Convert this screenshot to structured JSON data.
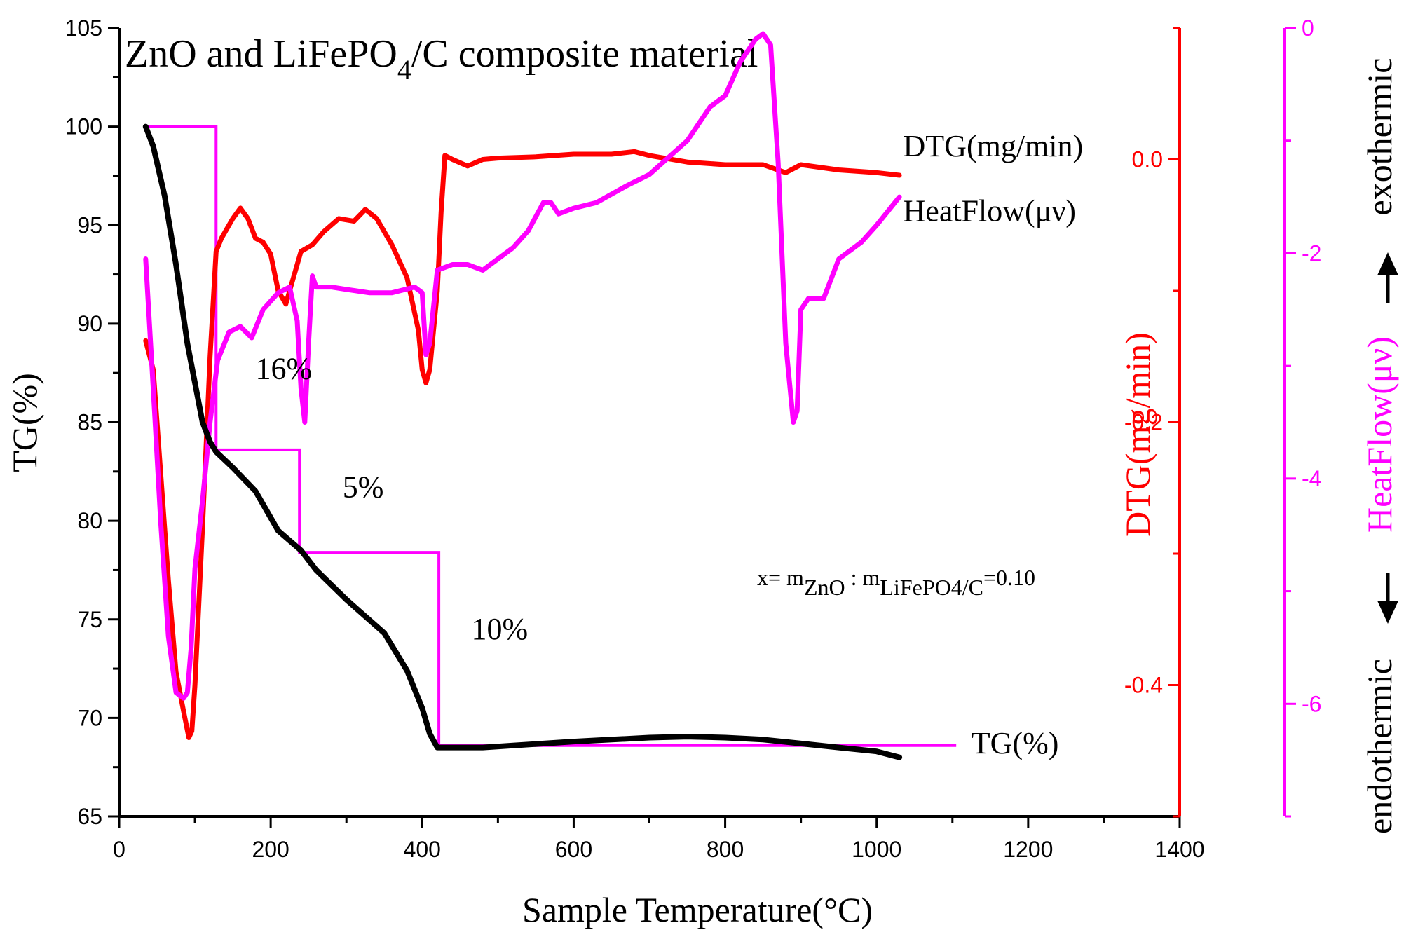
{
  "chart_data": {
    "type": "line",
    "title": "ZnO and LiFePO4/C composite material",
    "title_parts": {
      "pre": "ZnO and LiFePO",
      "sub": "4",
      "post": "/C composite material"
    },
    "xlabel": "Sample Temperature(°C)",
    "xlim": [
      0,
      1400
    ],
    "x_ticks": [
      0,
      200,
      400,
      600,
      800,
      1000,
      1200,
      1400
    ],
    "axes": {
      "tg": {
        "label": "TG(%)",
        "range": [
          65,
          105
        ],
        "ticks": [
          65,
          70,
          75,
          80,
          85,
          90,
          95,
          100,
          105
        ],
        "color": "#000000"
      },
      "dtg": {
        "label": "DTG(mg/min)",
        "range": [
          -0.5,
          0.1
        ],
        "ticks": [
          -0.4,
          -0.2,
          0.0
        ],
        "tick_labels": [
          "-0.4",
          "-0.2",
          "0.0"
        ],
        "color": "#ff0000"
      },
      "heat": {
        "label": "HeatFlow(μν)",
        "range": [
          -7,
          0
        ],
        "ticks": [
          -6,
          -4,
          -2,
          0
        ],
        "color": "#ff00ff"
      }
    },
    "side_labels": {
      "exo": "exothermic",
      "endo": "endothermic"
    },
    "series": [
      {
        "name": "TG(%)",
        "axis": "tg",
        "color": "#000000",
        "x": [
          35,
          45,
          60,
          75,
          90,
          100,
          110,
          120,
          128,
          150,
          180,
          210,
          225,
          240,
          260,
          300,
          350,
          380,
          400,
          410,
          420,
          440,
          480,
          520,
          600,
          650,
          700,
          750,
          800,
          850,
          900,
          950,
          1000,
          1030
        ],
        "y": [
          100,
          99,
          96.5,
          93,
          89,
          87,
          85,
          84,
          83.5,
          82.7,
          81.5,
          79.5,
          79,
          78.5,
          77.5,
          76,
          74.3,
          72.4,
          70.5,
          69.2,
          68.5,
          68.5,
          68.5,
          68.6,
          68.8,
          68.9,
          69.0,
          69.05,
          69.0,
          68.9,
          68.7,
          68.5,
          68.3,
          68.0
        ]
      },
      {
        "name": "DTG(mg/min)",
        "axis": "dtg",
        "color": "#ff0000",
        "x": [
          35,
          45,
          55,
          65,
          75,
          85,
          92,
          96,
          100,
          110,
          120,
          128,
          135,
          150,
          160,
          170,
          180,
          190,
          200,
          210,
          220,
          230,
          240,
          255,
          270,
          290,
          310,
          325,
          340,
          360,
          380,
          395,
          400,
          405,
          410,
          420,
          425,
          430,
          440,
          460,
          480,
          500,
          550,
          600,
          650,
          680,
          700,
          750,
          800,
          850,
          880,
          900,
          950,
          1000,
          1030
        ],
        "y": [
          -0.138,
          -0.16,
          -0.24,
          -0.32,
          -0.39,
          -0.42,
          -0.44,
          -0.435,
          -0.4,
          -0.28,
          -0.15,
          -0.07,
          -0.06,
          -0.045,
          -0.037,
          -0.045,
          -0.06,
          -0.063,
          -0.072,
          -0.1,
          -0.11,
          -0.09,
          -0.07,
          -0.065,
          -0.055,
          -0.045,
          -0.047,
          -0.038,
          -0.045,
          -0.065,
          -0.09,
          -0.13,
          -0.16,
          -0.17,
          -0.16,
          -0.1,
          -0.04,
          0.003,
          0.0,
          -0.005,
          0.0,
          0.001,
          0.002,
          0.004,
          0.004,
          0.006,
          0.003,
          -0.002,
          -0.004,
          -0.004,
          -0.01,
          -0.004,
          -0.008,
          -0.01,
          -0.012
        ]
      },
      {
        "name": "HeatFlow(μν)",
        "axis": "heat",
        "color": "#ff00ff",
        "x": [
          35,
          45,
          55,
          65,
          75,
          85,
          90,
          95,
          100,
          110,
          120,
          130,
          145,
          160,
          175,
          190,
          210,
          225,
          235,
          240,
          245,
          250,
          255,
          260,
          265,
          280,
          300,
          330,
          360,
          390,
          400,
          405,
          410,
          420,
          440,
          460,
          480,
          500,
          520,
          540,
          560,
          570,
          580,
          600,
          630,
          670,
          700,
          750,
          780,
          800,
          820,
          840,
          850,
          860,
          870,
          880,
          890,
          895,
          900,
          910,
          930,
          950,
          980,
          1000,
          1030
        ],
        "y": [
          -2.05,
          -3.2,
          -4.4,
          -5.4,
          -5.9,
          -5.95,
          -5.9,
          -5.5,
          -4.8,
          -4.2,
          -3.5,
          -2.95,
          -2.7,
          -2.65,
          -2.75,
          -2.5,
          -2.35,
          -2.3,
          -2.6,
          -3.2,
          -3.5,
          -2.8,
          -2.2,
          -2.3,
          -2.3,
          -2.3,
          -2.32,
          -2.35,
          -2.35,
          -2.3,
          -2.35,
          -2.9,
          -2.8,
          -2.15,
          -2.1,
          -2.1,
          -2.15,
          -2.05,
          -1.95,
          -1.8,
          -1.55,
          -1.55,
          -1.65,
          -1.6,
          -1.55,
          -1.4,
          -1.3,
          -1.0,
          -0.7,
          -0.6,
          -0.3,
          -0.1,
          -0.05,
          -0.15,
          -1.2,
          -2.8,
          -3.5,
          -3.4,
          -2.5,
          -2.4,
          -2.4,
          -2.05,
          -1.9,
          -1.75,
          -1.5
        ]
      }
    ],
    "step_line": {
      "color": "#ff00ff",
      "axis": "tg",
      "x": [
        35,
        128,
        128,
        238,
        238,
        422,
        422,
        1105
      ],
      "y": [
        100,
        100,
        83.6,
        83.6,
        78.4,
        78.4,
        68.6,
        68.6
      ]
    },
    "annotations": [
      {
        "text": "16%",
        "x": 180,
        "y": 87.2
      },
      {
        "text": "5%",
        "x": 295,
        "y": 81.2
      },
      {
        "text": "10%",
        "x": 465,
        "y": 74.0
      },
      {
        "text": "TG(%)",
        "x": 1125,
        "y": 68.2
      },
      {
        "text": "DTG(mg/min)",
        "x": 1035,
        "y": 98.5
      },
      {
        "text": "HeatFlow(μν)",
        "x": 1035,
        "y": 95.2
      }
    ],
    "formula": {
      "prefix": "x= m",
      "sub1": "ZnO",
      "mid": " : m",
      "sub2": "LiFePO4/C",
      "suffix": "=0.10"
    }
  }
}
